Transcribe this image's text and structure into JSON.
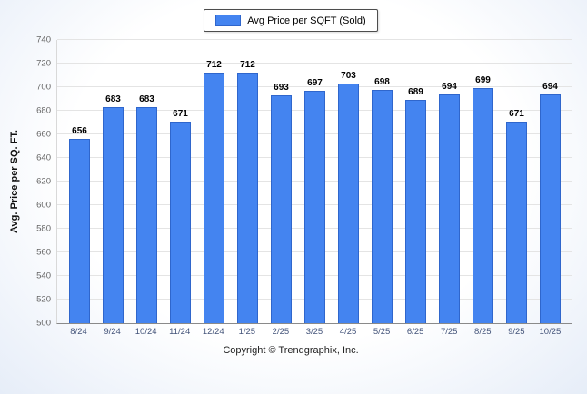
{
  "page": {
    "footer": "Copyright © Trendgraphix, Inc."
  },
  "chart_data": {
    "type": "bar",
    "title": "",
    "legend": "Avg Price per SQFT (Sold)",
    "legend_position": "top",
    "xlabel": "",
    "ylabel": "Avg. Price per SQ. FT.",
    "ylim": [
      500,
      740
    ],
    "yticks": [
      500,
      520,
      540,
      560,
      580,
      600,
      620,
      640,
      660,
      680,
      700,
      720,
      740
    ],
    "grid": "horizontal",
    "categories": [
      "8/24",
      "9/24",
      "10/24",
      "11/24",
      "12/24",
      "1/25",
      "2/25",
      "3/25",
      "4/25",
      "5/25",
      "6/25",
      "7/25",
      "8/25",
      "9/25",
      "10/25"
    ],
    "values": [
      656,
      683,
      683,
      671,
      712,
      712,
      693,
      697,
      703,
      698,
      689,
      694,
      699,
      671,
      694
    ],
    "bar_color": "#4484f0",
    "bar_border_color": "#2f66cc"
  }
}
